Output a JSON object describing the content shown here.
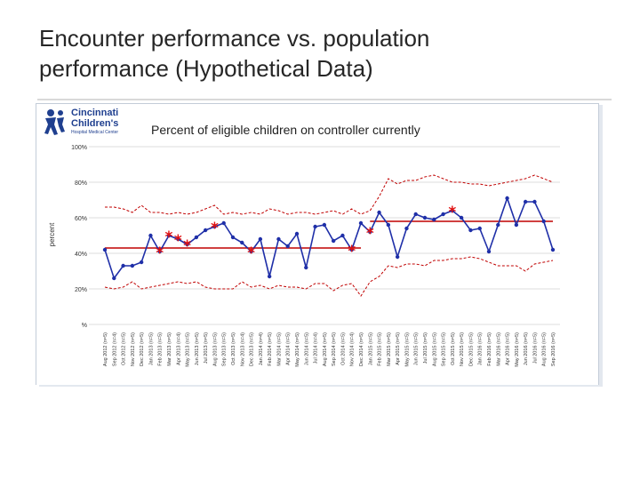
{
  "slide": {
    "title_line1": "Encounter performance vs. population",
    "title_line2": "performance (Hypothetical Data)"
  },
  "logo": {
    "line1": "Cincinnati",
    "line2": "Children's",
    "tagline": "Hospital Medical Center"
  },
  "colors": {
    "series_line": "#1f2fa8",
    "center_line": "#c00000",
    "control_limits": "#c00000",
    "special_cause": "#e01010",
    "grid": "#d3d3d3"
  },
  "chart_data": {
    "type": "line",
    "title": "Percent of eligible children on controller currently",
    "ylabel": "percent",
    "xlabel": "",
    "ylim": [
      0,
      100
    ],
    "y_ticks": [
      0,
      20,
      40,
      60,
      80,
      100
    ],
    "y_tick_labels": [
      "%",
      "20%",
      "40%",
      "60%",
      "80%",
      "100%"
    ],
    "grid": true,
    "categories": [
      "Aug 2012 (n=5)",
      "Sep 2012 (n=4)",
      "Oct 2012 (n=5)",
      "Nov 2012 (n=5)",
      "Dec 2012 (n=5)",
      "Jan 2013 (n=5)",
      "Feb 2013 (n=5)",
      "Mar 2013 (n=5)",
      "Apr 2013 (n=4)",
      "May 2013 (n=5)",
      "Jun 2013 (n=5)",
      "Jul 2013 (n=5)",
      "Aug 2013 (n=5)",
      "Sep 2013 (n=5)",
      "Oct 2013 (n=5)",
      "Nov 2013 (n=4)",
      "Dec 2013 (n=5)",
      "Jan 2014 (n=4)",
      "Feb 2014 (n=5)",
      "Mar 2014 (n=5)",
      "Apr 2014 (n=5)",
      "May 2014 (n=5)",
      "Jun 2014 (n=5)",
      "Jul 2014 (n=4)",
      "Aug 2014 (n=5)",
      "Sep 2014 (n=5)",
      "Oct 2014 (n=5)",
      "Nov 2014 (n=4)",
      "Dec 2014 (n=5)",
      "Jan 2015 (n=5)",
      "Feb 2015 (n=5)",
      "Mar 2015 (n=5)",
      "Apr 2015 (n=5)",
      "May 2015 (n=5)",
      "Jun 2015 (n=5)",
      "Jul 2015 (n=5)",
      "Aug 2015 (n=5)",
      "Sep 2015 (n=5)",
      "Oct 2015 (n=5)",
      "Nov 2015 (n=5)",
      "Dec 2015 (n=5)",
      "Jan 2016 (n=5)",
      "Feb 2016 (n=5)",
      "Mar 2016 (n=5)",
      "Apr 2016 (n=5)",
      "May 2016 (n=5)",
      "Jun 2016 (n=5)",
      "Jul 2016 (n=5)",
      "Aug 2016 (n=5)",
      "Sep 2016 (n=5)"
    ],
    "series": [
      {
        "values": [
          42,
          26,
          33,
          33,
          35,
          50,
          41,
          50,
          48,
          45,
          49,
          53,
          55,
          57,
          49,
          46,
          41,
          48,
          27,
          48,
          44,
          51,
          32,
          55,
          56,
          47,
          50,
          42,
          57,
          52,
          63,
          56,
          38,
          54,
          62,
          60,
          59,
          62,
          64,
          60,
          53,
          54,
          41,
          56,
          71,
          56,
          69,
          69,
          58,
          42
        ]
      }
    ],
    "center_line": [
      {
        "from_index": 0,
        "to_index": 28,
        "value": 43
      },
      {
        "from_index": 29,
        "to_index": 49,
        "value": 58
      }
    ],
    "upper_limit": [
      66,
      66,
      65,
      63,
      67,
      63,
      63,
      62,
      63,
      62,
      63,
      65,
      67,
      62,
      63,
      62,
      63,
      62,
      65,
      64,
      62,
      63,
      63,
      62,
      63,
      64,
      62,
      65,
      62,
      64,
      72,
      82,
      79,
      81,
      81,
      83,
      84,
      82,
      80,
      80,
      79,
      79,
      78,
      79,
      80,
      81,
      82,
      84,
      82,
      80
    ],
    "lower_limit": [
      21,
      20,
      21,
      24,
      20,
      21,
      22,
      23,
      24,
      23,
      24,
      21,
      20,
      20,
      20,
      24,
      21,
      22,
      20,
      22,
      21,
      21,
      20,
      23,
      23,
      19,
      22,
      23,
      16,
      24,
      27,
      33,
      32,
      34,
      34,
      33,
      36,
      36,
      37,
      37,
      38,
      37,
      35,
      33,
      33,
      33,
      30,
      34,
      35,
      36
    ],
    "special_cause_points": [
      6,
      7,
      8,
      9,
      12,
      16,
      27,
      29,
      38
    ]
  }
}
